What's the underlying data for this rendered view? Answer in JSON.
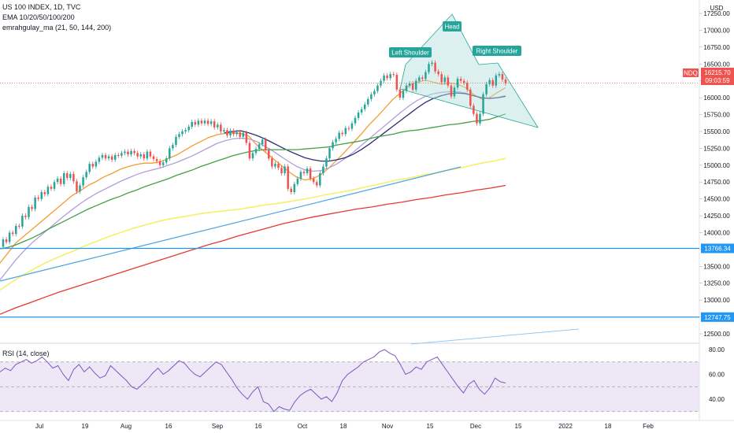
{
  "legend": {
    "symbol_line": "US 100 INDEX, 1D, TVC",
    "ema_line": "EMA 10/20/50/100/200",
    "ma_line": "emrahgulay_ma (21, 50, 144, 200)",
    "rsi_line": "RSI (14, close)"
  },
  "price_axis": {
    "currency": "USD",
    "ticks": [
      "17250.00",
      "17000.00",
      "16750.00",
      "16500.00",
      "16250.00",
      "16000.00",
      "15750.00",
      "15500.00",
      "15250.00",
      "15000.00",
      "14750.00",
      "14500.00",
      "14250.00",
      "14000.00",
      "13750.00",
      "13500.00",
      "13250.00",
      "13000.00",
      "12750.00",
      "12500.00"
    ],
    "tick_values": [
      17250,
      17000,
      16750,
      16500,
      16250,
      16000,
      15750,
      15500,
      15250,
      15000,
      14750,
      14500,
      14250,
      14000,
      13750,
      13500,
      13250,
      13000,
      12750,
      12500
    ]
  },
  "rsi_axis": {
    "ticks": [
      "80.00",
      "60.00",
      "40.00"
    ],
    "tick_values": [
      80,
      60,
      40
    ],
    "upper_band": 70,
    "mid_band": 50,
    "lower_band": 30
  },
  "time_axis": {
    "labels": [
      "Jul",
      "19",
      "Aug",
      "16",
      "Sep",
      "16",
      "Oct",
      "18",
      "Nov",
      "15",
      "Dec",
      "15",
      "2022",
      "18",
      "Feb"
    ]
  },
  "price_labels": {
    "last": "16215.70",
    "last_value": 16215.7,
    "countdown": "09:03:59",
    "symbol_tag": "NDQ",
    "level_high": "13766.34",
    "level_high_value": 13766.34,
    "level_low": "12747.75",
    "level_low_value": 12747.75
  },
  "annotations": {
    "left_shoulder": "Left Shoulder",
    "head": "Head",
    "right_shoulder": "Right Shoulder"
  },
  "colors": {
    "up_candle": "#26a69a",
    "down_candle": "#ef5350",
    "ema10": "#f59b32",
    "ema20": "#b39ddb",
    "ema50_dark": "#2a2e78",
    "ema100": "#43a047",
    "ema_yellow": "#f5f06a",
    "ema200": "#e53935",
    "trend_blue": "#4aa3df",
    "level_line": "#2196f3",
    "pattern_fill": "#b2dfdb",
    "pattern_stroke": "#26a69a",
    "rsi_line": "#7e57c2",
    "rsi_band": "#ede7f6"
  },
  "chart_data": {
    "type": "candlestick",
    "symbol": "US 100 INDEX",
    "interval": "1D",
    "source": "TVC",
    "pattern": "head-and-shoulders",
    "candles": [
      [
        13790,
        13900
      ],
      [
        13900,
        13860
      ],
      [
        13860,
        14000
      ],
      [
        14000,
        13980
      ],
      [
        13980,
        14100
      ],
      [
        14100,
        14090
      ],
      [
        14090,
        14250
      ],
      [
        14250,
        14230
      ],
      [
        14230,
        14380
      ],
      [
        14380,
        14350
      ],
      [
        14350,
        14520
      ],
      [
        14520,
        14500
      ],
      [
        14500,
        14600
      ],
      [
        14600,
        14570
      ],
      [
        14570,
        14680
      ],
      [
        14680,
        14650
      ],
      [
        14650,
        14750
      ],
      [
        14750,
        14800
      ],
      [
        14800,
        14720
      ],
      [
        14720,
        14880
      ],
      [
        14880,
        14810
      ],
      [
        14810,
        14870
      ],
      [
        14870,
        14760
      ],
      [
        14760,
        14610
      ],
      [
        14610,
        14700
      ],
      [
        14700,
        14820
      ],
      [
        14820,
        14900
      ],
      [
        14900,
        15020
      ],
      [
        15020,
        14980
      ],
      [
        14980,
        15050
      ],
      [
        15050,
        15110
      ],
      [
        15110,
        15150
      ],
      [
        15150,
        15100
      ],
      [
        15100,
        15130
      ],
      [
        15130,
        15080
      ],
      [
        15080,
        15150
      ],
      [
        15150,
        15140
      ],
      [
        15140,
        15180
      ],
      [
        15180,
        15200
      ],
      [
        15200,
        15160
      ],
      [
        15160,
        15210
      ],
      [
        15210,
        15180
      ],
      [
        15180,
        15130
      ],
      [
        15130,
        15160
      ],
      [
        15160,
        15100
      ],
      [
        15100,
        15200
      ],
      [
        15200,
        15130
      ],
      [
        15130,
        15090
      ],
      [
        15090,
        15060
      ],
      [
        15060,
        15000
      ],
      [
        15000,
        15040
      ],
      [
        15040,
        15100
      ],
      [
        15100,
        15250
      ],
      [
        15250,
        15300
      ],
      [
        15300,
        15420
      ],
      [
        15420,
        15460
      ],
      [
        15460,
        15500
      ],
      [
        15500,
        15520
      ],
      [
        15520,
        15570
      ],
      [
        15570,
        15640
      ],
      [
        15640,
        15600
      ],
      [
        15600,
        15660
      ],
      [
        15660,
        15620
      ],
      [
        15620,
        15660
      ],
      [
        15660,
        15610
      ],
      [
        15610,
        15650
      ],
      [
        15650,
        15560
      ],
      [
        15560,
        15600
      ],
      [
        15600,
        15500
      ],
      [
        15500,
        15520
      ],
      [
        15520,
        15440
      ],
      [
        15440,
        15510
      ],
      [
        15510,
        15460
      ],
      [
        15460,
        15490
      ],
      [
        15490,
        15420
      ],
      [
        15420,
        15480
      ],
      [
        15480,
        15330
      ],
      [
        15330,
        15100
      ],
      [
        15100,
        15180
      ],
      [
        15180,
        15240
      ],
      [
        15240,
        15310
      ],
      [
        15310,
        15380
      ],
      [
        15380,
        15220
      ],
      [
        15220,
        15100
      ],
      [
        15100,
        14980
      ],
      [
        14980,
        15020
      ],
      [
        15020,
        14960
      ],
      [
        14960,
        14880
      ],
      [
        14880,
        14980
      ],
      [
        14980,
        14650
      ],
      [
        14650,
        14600
      ],
      [
        14600,
        14720
      ],
      [
        14720,
        14800
      ],
      [
        14800,
        14900
      ],
      [
        14900,
        14880
      ],
      [
        14880,
        14950
      ],
      [
        14950,
        14800
      ],
      [
        14800,
        14750
      ],
      [
        14750,
        14700
      ],
      [
        14700,
        14880
      ],
      [
        14880,
        14980
      ],
      [
        14980,
        15100
      ],
      [
        15100,
        15250
      ],
      [
        15250,
        15340
      ],
      [
        15340,
        15390
      ],
      [
        15390,
        15480
      ],
      [
        15480,
        15460
      ],
      [
        15460,
        15550
      ],
      [
        15550,
        15540
      ],
      [
        15540,
        15620
      ],
      [
        15620,
        15700
      ],
      [
        15700,
        15780
      ],
      [
        15780,
        15830
      ],
      [
        15830,
        15900
      ],
      [
        15900,
        15980
      ],
      [
        15980,
        16050
      ],
      [
        16050,
        16100
      ],
      [
        16100,
        16180
      ],
      [
        16180,
        16250
      ],
      [
        16250,
        16330
      ],
      [
        16330,
        16290
      ],
      [
        16290,
        16350
      ],
      [
        16350,
        16340
      ],
      [
        16340,
        16120
      ],
      [
        16120,
        16000
      ],
      [
        16000,
        16100
      ],
      [
        16100,
        16180
      ],
      [
        16180,
        16210
      ],
      [
        16210,
        16120
      ],
      [
        16120,
        16250
      ],
      [
        16250,
        16300
      ],
      [
        16300,
        16280
      ],
      [
        16280,
        16380
      ],
      [
        16380,
        16500
      ],
      [
        16500,
        16520
      ],
      [
        16520,
        16390
      ],
      [
        16390,
        16350
      ],
      [
        16350,
        16230
      ],
      [
        16230,
        16300
      ],
      [
        16300,
        16180
      ],
      [
        16180,
        16020
      ],
      [
        16020,
        16150
      ],
      [
        16150,
        16280
      ],
      [
        16280,
        16250
      ],
      [
        16250,
        16220
      ],
      [
        16220,
        16120
      ],
      [
        16120,
        15880
      ],
      [
        15880,
        15760
      ],
      [
        15760,
        15620
      ],
      [
        15620,
        15760
      ],
      [
        15760,
        16050
      ],
      [
        16050,
        16200
      ],
      [
        16200,
        16260
      ],
      [
        16260,
        16180
      ],
      [
        16180,
        16330
      ],
      [
        16330,
        16350
      ],
      [
        16350,
        16270
      ],
      [
        16270,
        16215.7
      ]
    ],
    "series": [
      {
        "name": "EMA 10",
        "values": [
          13550,
          13700,
          13850,
          13950,
          14050,
          14150,
          14250,
          14350,
          14450,
          14550,
          14620,
          14700,
          14760,
          14830,
          14880,
          14940,
          14980,
          15010,
          15030,
          15030,
          15050,
          15100,
          15150,
          15220,
          15290,
          15350,
          15410,
          15450,
          15470,
          15480,
          15470,
          15430,
          15300,
          15200,
          15100,
          15000,
          14900,
          14820,
          14780,
          14800,
          14860,
          14960,
          15080,
          15200,
          15330,
          15460,
          15600,
          15720,
          15850,
          15980,
          16080,
          16180,
          16230,
          16260,
          16230,
          16200,
          16220,
          16200,
          16150,
          16050,
          15980,
          16000,
          16080,
          16150
        ]
      },
      {
        "name": "EMA 20",
        "values": [
          13300,
          13450,
          13600,
          13730,
          13850,
          13950,
          14050,
          14150,
          14250,
          14340,
          14430,
          14510,
          14580,
          14640,
          14700,
          14760,
          14810,
          14860,
          14900,
          14930,
          14960,
          15000,
          15040,
          15090,
          15140,
          15200,
          15260,
          15320,
          15360,
          15390,
          15400,
          15390,
          15350,
          15280,
          15210,
          15130,
          15050,
          14980,
          14930,
          14910,
          14920,
          14960,
          15020,
          15100,
          15190,
          15290,
          15390,
          15490,
          15590,
          15690,
          15790,
          15880,
          15960,
          16020,
          16060,
          16080,
          16090,
          16090,
          16070,
          16030,
          16000,
          15990,
          16000,
          16030
        ]
      },
      {
        "name": "EMA 50",
        "values": [
          null,
          null,
          null,
          null,
          null,
          null,
          null,
          null,
          null,
          null,
          null,
          null,
          null,
          null,
          null,
          null,
          null,
          null,
          null,
          null,
          null,
          null,
          null,
          null,
          null,
          null,
          null,
          null,
          15480,
          15500,
          15510,
          15480,
          15440,
          15390,
          15330,
          15270,
          15210,
          15160,
          15110,
          15080,
          15060,
          15060,
          15080,
          15110,
          15160,
          15230,
          15310,
          15400,
          15490,
          15580,
          15670,
          15760,
          15850,
          15930,
          15990,
          16030,
          16060,
          16070,
          16060,
          16030,
          16000,
          15990,
          16000,
          16020
        ]
      },
      {
        "name": "EMA 100",
        "values": [
          13760,
          13780,
          13820,
          13870,
          13920,
          13980,
          14050,
          14110,
          14170,
          14230,
          14290,
          14350,
          14400,
          14450,
          14500,
          14540,
          14590,
          14630,
          14680,
          14720,
          14760,
          14800,
          14850,
          14890,
          14930,
          14980,
          15020,
          15060,
          15100,
          15140,
          15170,
          15200,
          15220,
          15230,
          15230,
          15230,
          15230,
          15230,
          15240,
          15250,
          15260,
          15270,
          15300,
          15320,
          15340,
          15360,
          15390,
          15420,
          15440,
          15460,
          15490,
          15510,
          15520,
          15540,
          15560,
          15580,
          15600,
          15610,
          15630,
          15650,
          15660,
          15680,
          15720,
          15760
        ]
      },
      {
        "name": "EMA yellow",
        "values": [
          13150,
          13270,
          13380,
          13480,
          13570,
          13650,
          13720,
          13800,
          13870,
          13940,
          14000,
          14060,
          14110,
          14160,
          14200,
          14230,
          14260,
          14290,
          14310,
          14330,
          14350,
          14380,
          14410,
          14430,
          14460,
          14490,
          14520,
          14560,
          14590,
          14620,
          14660,
          14700,
          14740,
          14780,
          14810,
          14850,
          14880,
          14920,
          14950,
          14990,
          15030,
          15060,
          15100
        ]
      },
      {
        "name": "EMA 200",
        "values": [
          12790,
          12880,
          12960,
          13040,
          13120,
          13190,
          13260,
          13330,
          13400,
          13470,
          13540,
          13610,
          13680,
          13750,
          13820,
          13880,
          13950,
          14010,
          14070,
          14130,
          14180,
          14230,
          14270,
          14310,
          14350,
          14380,
          14420,
          14450,
          14490,
          14520,
          14560,
          14590,
          14630,
          14660,
          14700
        ]
      }
    ],
    "rsi": [
      62,
      65,
      63,
      68,
      70,
      72,
      69,
      71,
      74,
      70,
      65,
      67,
      60,
      55,
      64,
      68,
      62,
      66,
      61,
      57,
      59,
      67,
      63,
      59,
      55,
      50,
      48,
      52,
      56,
      61,
      65,
      60,
      63,
      67,
      71,
      69,
      64,
      60,
      58,
      62,
      66,
      70,
      68,
      62,
      56,
      49,
      44,
      40,
      46,
      50,
      38,
      36,
      30,
      34,
      32,
      31,
      38,
      43,
      46,
      48,
      44,
      40,
      42,
      38,
      45,
      55,
      60,
      63,
      66,
      70,
      72,
      74,
      78,
      80,
      77,
      75,
      68,
      60,
      62,
      66,
      64,
      70,
      72,
      74,
      68,
      62,
      56,
      50,
      45,
      52,
      55,
      48,
      44,
      49,
      57,
      54,
      53
    ],
    "levels": [
      13766.34,
      12747.75
    ]
  }
}
